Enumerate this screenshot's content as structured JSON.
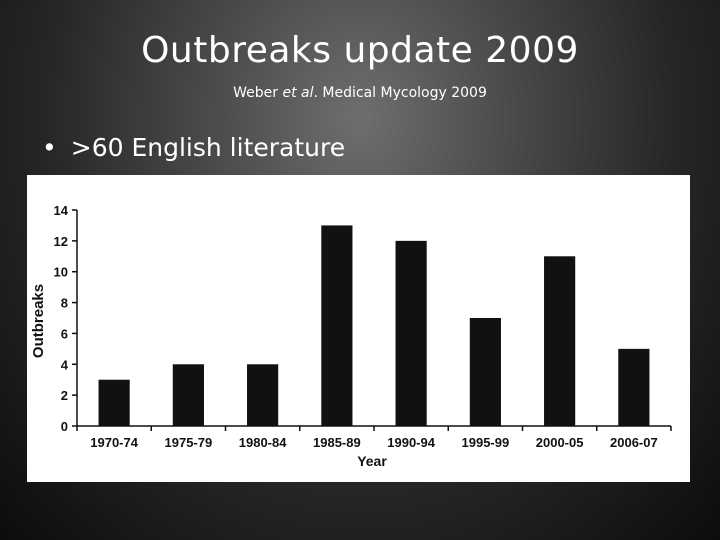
{
  "slide": {
    "title": "Outbreaks update 2009",
    "subtitle": {
      "author": "Weber",
      "etal": "et al",
      "dot": ".",
      "source": " Medical Mycology 2009"
    },
    "bullet_text": ">60 English literature"
  },
  "chart_data": {
    "type": "bar",
    "categories": [
      "1970-74",
      "1975-79",
      "1980-84",
      "1985-89",
      "1990-94",
      "1995-99",
      "2000-05",
      "2006-07"
    ],
    "values": [
      3,
      4,
      4,
      13,
      12,
      7,
      11,
      5
    ],
    "xlabel": "Year",
    "ylabel": "Outbreaks",
    "ylim": [
      0,
      14
    ],
    "yticks": [
      0,
      2,
      4,
      6,
      8,
      10,
      12,
      14
    ],
    "grid": false,
    "bar_color": "#111111"
  }
}
